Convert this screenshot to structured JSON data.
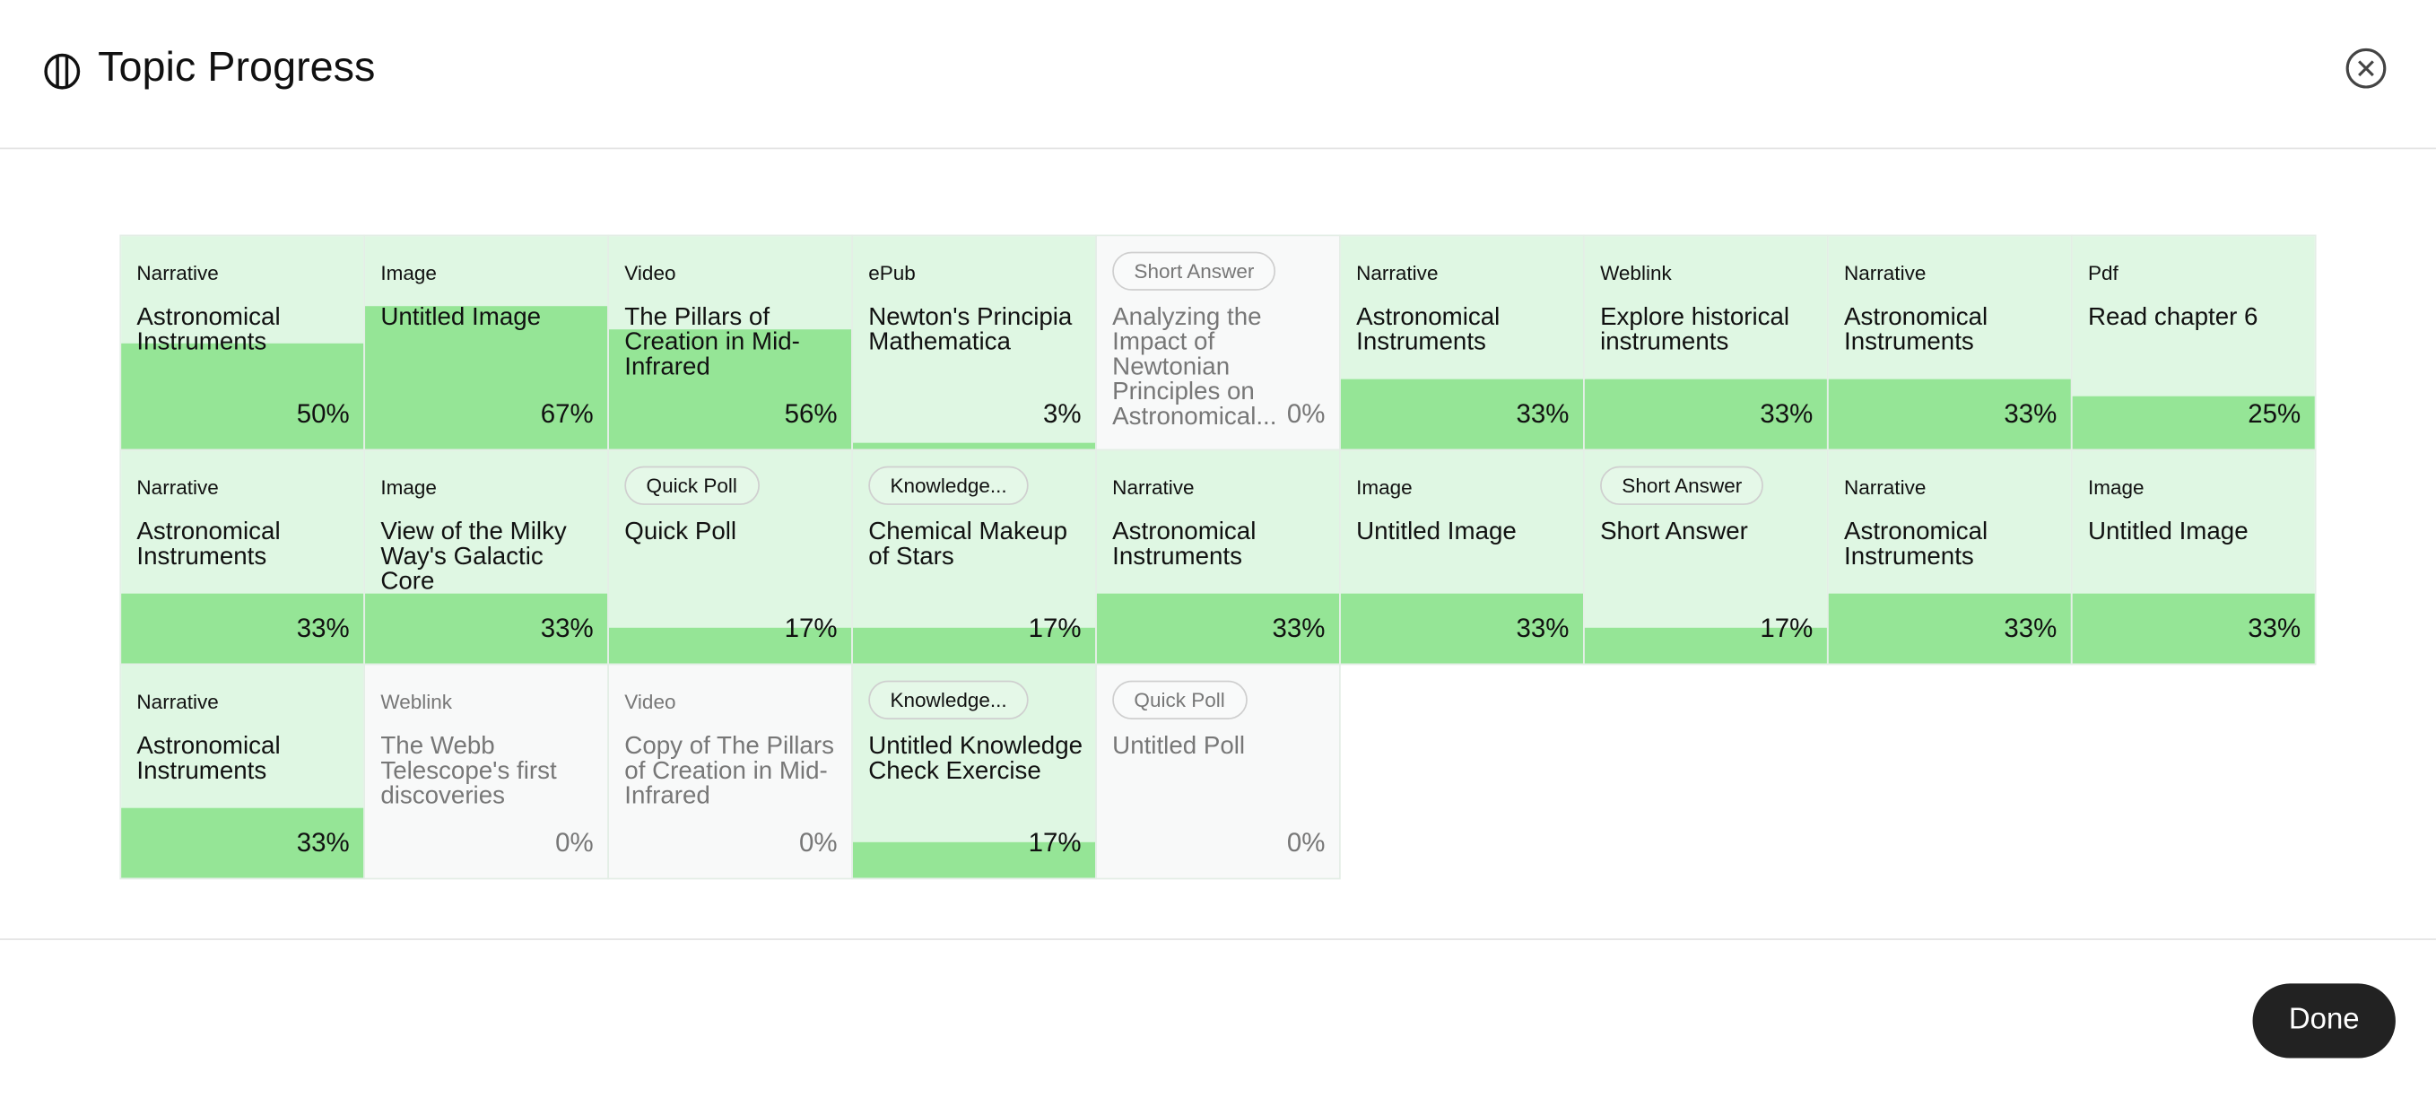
{
  "header": {
    "title": "Topic Progress"
  },
  "tiles": [
    {
      "type": "Narrative",
      "title": "Astronomical Instruments",
      "progress": 50,
      "progress_label": "50%"
    },
    {
      "type": "Image",
      "title": "Untitled Image",
      "progress": 67,
      "progress_label": "67%"
    },
    {
      "type": "Video",
      "title": "The Pillars of Creation in Mid-Infrared",
      "progress": 56,
      "progress_label": "56%"
    },
    {
      "type": "ePub",
      "title": "Newton's Principia Mathematica",
      "progress": 3,
      "progress_label": "3%"
    },
    {
      "type": "Short Answer",
      "badge": true,
      "title": "Analyzing the Impact of Newtonian Principles on Astronomical...",
      "progress": 0,
      "progress_label": "0%"
    },
    {
      "type": "Narrative",
      "title": "Astronomical Instruments",
      "progress": 33,
      "progress_label": "33%"
    },
    {
      "type": "Weblink",
      "title": "Explore historical instruments",
      "progress": 33,
      "progress_label": "33%"
    },
    {
      "type": "Narrative",
      "title": "Astronomical Instruments",
      "progress": 33,
      "progress_label": "33%"
    },
    {
      "type": "Pdf",
      "title": "Read chapter 6",
      "progress": 25,
      "progress_label": "25%"
    },
    {
      "type": "Narrative",
      "title": "Astronomical Instruments",
      "progress": 33,
      "progress_label": "33%"
    },
    {
      "type": "Image",
      "title": "View of the Milky Way's Galactic Core",
      "progress": 33,
      "progress_label": "33%"
    },
    {
      "type": "Quick Poll",
      "badge": true,
      "title": "Quick Poll",
      "progress": 17,
      "progress_label": "17%"
    },
    {
      "type": "Knowledge...",
      "badge": true,
      "title": "Chemical Makeup of Stars",
      "progress": 17,
      "progress_label": "17%"
    },
    {
      "type": "Narrative",
      "title": "Astronomical Instruments",
      "progress": 33,
      "progress_label": "33%"
    },
    {
      "type": "Image",
      "title": "Untitled Image",
      "progress": 33,
      "progress_label": "33%"
    },
    {
      "type": "Short Answer",
      "badge": true,
      "title": "Short Answer",
      "progress": 17,
      "progress_label": "17%"
    },
    {
      "type": "Narrative",
      "title": "Astronomical Instruments",
      "progress": 33,
      "progress_label": "33%"
    },
    {
      "type": "Image",
      "title": "Untitled Image",
      "progress": 33,
      "progress_label": "33%"
    },
    {
      "type": "Narrative",
      "title": "Astronomical Instruments",
      "progress": 33,
      "progress_label": "33%"
    },
    {
      "type": "Weblink",
      "title": "The Webb Telescope's first discoveries",
      "progress": 0,
      "progress_label": "0%"
    },
    {
      "type": "Video",
      "title": "Copy of The Pillars of Creation in Mid-Infrared",
      "progress": 0,
      "progress_label": "0%"
    },
    {
      "type": "Knowledge...",
      "badge": true,
      "title": "Untitled Knowledge Check Exercise",
      "progress": 17,
      "progress_label": "17%"
    },
    {
      "type": "Quick Poll",
      "badge": true,
      "title": "Untitled Poll",
      "progress": 0,
      "progress_label": "0%"
    }
  ],
  "footer": {
    "button": "Done"
  }
}
